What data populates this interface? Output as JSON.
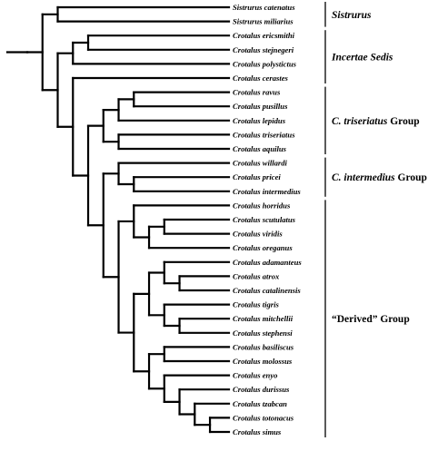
{
  "taxa": [
    {
      "genus": "Sistrurus",
      "species": "catenatus"
    },
    {
      "genus": "Sistrurus",
      "species": "miliarius"
    },
    {
      "genus": "Crotalus",
      "species": "ericsmithi"
    },
    {
      "genus": "Crotalus",
      "species": "stejnegeri"
    },
    {
      "genus": "Crotalus",
      "species": "polystictus"
    },
    {
      "genus": "Crotalus",
      "species": "cerastes"
    },
    {
      "genus": "Crotalus",
      "species": "ravus"
    },
    {
      "genus": "Crotalus",
      "species": "pusillus"
    },
    {
      "genus": "Crotalus",
      "species": "lepidus"
    },
    {
      "genus": "Crotalus",
      "species": "triseriatus"
    },
    {
      "genus": "Crotalus",
      "species": "aquilus"
    },
    {
      "genus": "Crotalus",
      "species": "willardi"
    },
    {
      "genus": "Crotalus",
      "species": "pricei"
    },
    {
      "genus": "Crotalus",
      "species": "intermedius"
    },
    {
      "genus": "Crotalus",
      "species": "horridus"
    },
    {
      "genus": "Crotalus",
      "species": "scutulatus"
    },
    {
      "genus": "Crotalus",
      "species": "viridis"
    },
    {
      "genus": "Crotalus",
      "species": "oreganus"
    },
    {
      "genus": "Crotalus",
      "species": "adamanteus"
    },
    {
      "genus": "Crotalus",
      "species": "atrox"
    },
    {
      "genus": "Crotalus",
      "species": "catalinensis"
    },
    {
      "genus": "Crotalus",
      "species": "tigris"
    },
    {
      "genus": "Crotalus",
      "species": "mitchellii"
    },
    {
      "genus": "Crotalus",
      "species": "stephensi"
    },
    {
      "genus": "Crotalus",
      "species": "basiliscus"
    },
    {
      "genus": "Crotalus",
      "species": "molossus"
    },
    {
      "genus": "Crotalus",
      "species": "enyo"
    },
    {
      "genus": "Crotalus",
      "species": "durissus"
    },
    {
      "genus": "Crotalus",
      "species": "tzabcan"
    },
    {
      "genus": "Crotalus",
      "species": "totonacus"
    },
    {
      "genus": "Crotalus",
      "species": "simus"
    }
  ],
  "groups": [
    {
      "parts": [
        {
          "text": "Sistrurus",
          "italic": true
        }
      ],
      "from": 0,
      "to": 1
    },
    {
      "parts": [
        {
          "text": "Incertae Sedis",
          "italic": true
        }
      ],
      "from": 2,
      "to": 5
    },
    {
      "parts": [
        {
          "text": "C. triseriatus",
          "italic": true
        },
        {
          "text": " Group",
          "italic": false
        }
      ],
      "from": 6,
      "to": 10
    },
    {
      "parts": [
        {
          "text": "C. intermedius",
          "italic": true
        },
        {
          "text": " Group",
          "italic": false
        }
      ],
      "from": 11,
      "to": 13
    },
    {
      "parts": [
        {
          "text": "“Derived” Group",
          "italic": false
        }
      ],
      "from": 14,
      "to": 30
    }
  ],
  "tree": [
    [
      [
        0,
        1
      ],
      [
        [
          [
            2,
            3
          ],
          4
        ],
        [
          5,
          [
            [
              [
                [
                  6,
                  7
                ],
                8
              ],
              [
                9,
                10
              ]
            ],
            [
              [
                11,
                [
                  12,
                  13
                ]
              ],
              [
                [
                  14,
                  [
                    [
                      15,
                      16
                    ],
                    17
                  ]
                ],
                [
                  [
                    [
                      18,
                      [
                        19,
                        20
                      ]
                    ],
                    [
                      21,
                      [
                        22,
                        23
                      ]
                    ]
                  ],
                  [
                    [
                      24,
                      25
                    ],
                    [
                      26,
                      [
                        27,
                        [
                          28,
                          [
                            29,
                            30
                          ]
                        ]
                      ]
                    ]
                  ]
                ]
              ]
            ]
          ]
        ]
      ]
    ]
  ]
}
